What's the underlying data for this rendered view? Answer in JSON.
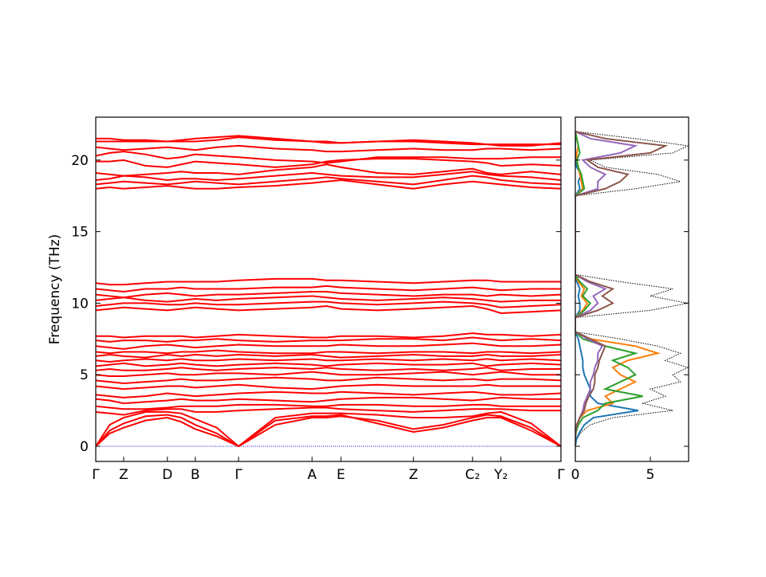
{
  "chart_data": [
    {
      "type": "line",
      "ylabel": "Frequency (THz)",
      "color": "#ff0000",
      "x": [
        0,
        0.3,
        0.6,
        1.07,
        1.54,
        1.84,
        2.14,
        2.6,
        3.07,
        3.86,
        4.65,
        4.96,
        5.27,
        6.05,
        6.83,
        7.47,
        8.1,
        8.41,
        8.71,
        9.36,
        10
      ],
      "bands": [
        [
          0,
          0.9,
          1.3,
          1.8,
          2.0,
          1.7,
          1.2,
          0.7,
          0,
          1.5,
          2.0,
          2.0,
          2.1,
          1.8,
          1.2,
          1.5,
          2.0,
          2.2,
          2.1,
          1.3,
          0
        ],
        [
          0,
          1.1,
          1.6,
          2.1,
          2.2,
          2.0,
          1.5,
          0.9,
          0,
          1.8,
          2.1,
          2.1,
          2.2,
          1.6,
          1.0,
          1.3,
          1.8,
          2.0,
          2.0,
          1.1,
          0
        ],
        [
          0,
          1.5,
          2.0,
          2.4,
          2.4,
          2.3,
          1.9,
          1.3,
          0,
          2.0,
          2.3,
          2.3,
          2.3,
          2.2,
          2.0,
          2.0,
          2.1,
          2.3,
          2.4,
          1.6,
          0
        ],
        [
          2.4,
          2.3,
          2.2,
          2.5,
          2.6,
          2.6,
          2.4,
          2.4,
          2.5,
          2.6,
          2.7,
          2.7,
          2.6,
          2.5,
          2.4,
          2.5,
          2.6,
          2.6,
          2.6,
          2.5,
          2.5
        ],
        [
          2.8,
          2.7,
          2.6,
          2.6,
          2.7,
          2.8,
          2.8,
          2.8,
          2.9,
          2.9,
          2.8,
          2.8,
          2.9,
          2.9,
          2.8,
          2.8,
          2.9,
          2.9,
          2.8,
          2.8,
          2.8
        ],
        [
          3.3,
          3.2,
          3.0,
          3.1,
          3.2,
          3.3,
          3.2,
          3.2,
          3.3,
          3.2,
          3.1,
          3.2,
          3.3,
          3.4,
          3.4,
          3.3,
          3.2,
          3.3,
          3.4,
          3.3,
          3.3
        ],
        [
          3.6,
          3.5,
          3.4,
          3.5,
          3.7,
          3.6,
          3.5,
          3.6,
          3.7,
          3.8,
          3.7,
          3.7,
          3.8,
          3.7,
          3.6,
          3.7,
          3.8,
          3.7,
          3.6,
          3.6,
          3.7
        ],
        [
          4.2,
          4.1,
          4.0,
          4.1,
          4.2,
          4.2,
          4.1,
          4.2,
          4.3,
          4.1,
          4.0,
          4.1,
          4.2,
          4.3,
          4.2,
          4.2,
          4.2,
          4.3,
          4.2,
          4.2,
          4.2
        ],
        [
          4.6,
          4.5,
          4.4,
          4.5,
          4.6,
          4.7,
          4.6,
          4.6,
          4.7,
          4.8,
          4.7,
          4.6,
          4.6,
          4.8,
          4.7,
          4.6,
          4.7,
          4.6,
          4.7,
          4.7,
          4.6
        ],
        [
          5.0,
          4.9,
          4.9,
          5.0,
          5.1,
          5.0,
          5.0,
          5.1,
          5.1,
          5.0,
          5.2,
          5.1,
          5.0,
          5.0,
          5.1,
          5.2,
          5.0,
          5.1,
          5.2,
          5.0,
          5.0
        ],
        [
          5.3,
          5.4,
          5.3,
          5.3,
          5.4,
          5.5,
          5.4,
          5.3,
          5.4,
          5.5,
          5.4,
          5.5,
          5.4,
          5.3,
          5.4,
          5.3,
          5.4,
          5.5,
          5.3,
          5.4,
          5.4
        ],
        [
          5.6,
          5.7,
          5.8,
          5.6,
          5.7,
          5.8,
          5.7,
          5.6,
          5.7,
          5.8,
          5.7,
          5.6,
          5.7,
          5.8,
          5.7,
          5.7,
          5.8,
          5.6,
          5.7,
          5.8,
          5.7
        ],
        [
          6.0,
          5.9,
          6.0,
          6.1,
          6.0,
          6.1,
          6.0,
          6.0,
          6.1,
          6.0,
          6.1,
          6.0,
          6.0,
          6.1,
          6.0,
          6.1,
          6.0,
          6.1,
          6.0,
          6.1,
          6.0
        ],
        [
          6.3,
          6.4,
          6.3,
          6.2,
          6.4,
          6.3,
          6.4,
          6.3,
          6.4,
          6.3,
          6.4,
          6.3,
          6.2,
          6.3,
          6.4,
          6.3,
          6.3,
          6.4,
          6.3,
          6.3,
          6.4
        ],
        [
          6.6,
          6.5,
          6.6,
          6.6,
          6.5,
          6.6,
          6.6,
          6.7,
          6.6,
          6.5,
          6.5,
          6.6,
          6.6,
          6.5,
          6.6,
          6.6,
          6.5,
          6.6,
          6.6,
          6.5,
          6.6
        ],
        [
          7.0,
          6.9,
          6.8,
          7.0,
          7.1,
          7.0,
          6.9,
          7.0,
          7.1,
          7.0,
          7.0,
          7.0,
          7.1,
          7.0,
          7.0,
          7.1,
          7.2,
          7.1,
          7.0,
          7.0,
          7.1
        ],
        [
          7.4,
          7.3,
          7.4,
          7.4,
          7.3,
          7.4,
          7.4,
          7.5,
          7.4,
          7.3,
          7.4,
          7.4,
          7.4,
          7.5,
          7.5,
          7.4,
          7.6,
          7.5,
          7.4,
          7.5,
          7.4
        ],
        [
          7.7,
          7.7,
          7.6,
          7.7,
          7.7,
          7.7,
          7.6,
          7.7,
          7.8,
          7.7,
          7.6,
          7.6,
          7.7,
          7.7,
          7.6,
          7.7,
          7.9,
          7.8,
          7.8,
          7.7,
          7.8
        ],
        [
          9.5,
          9.6,
          9.7,
          9.6,
          9.5,
          9.6,
          9.7,
          9.6,
          9.5,
          9.6,
          9.7,
          9.8,
          9.6,
          9.5,
          9.6,
          9.7,
          9.8,
          9.6,
          9.3,
          9.4,
          9.5
        ],
        [
          9.8,
          9.9,
          10.0,
          10.0,
          9.9,
          9.9,
          10.0,
          9.9,
          9.9,
          10.0,
          10.1,
          10.1,
          10.0,
          9.9,
          10.0,
          10.1,
          10.0,
          9.9,
          9.7,
          9.8,
          9.9
        ],
        [
          10.2,
          10.3,
          10.4,
          10.2,
          10.1,
          10.2,
          10.3,
          10.2,
          10.3,
          10.4,
          10.5,
          10.4,
          10.3,
          10.2,
          10.3,
          10.4,
          10.3,
          10.2,
          10.1,
          10.2,
          10.2
        ],
        [
          10.6,
          10.5,
          10.4,
          10.6,
          10.7,
          10.6,
          10.5,
          10.6,
          10.6,
          10.7,
          10.8,
          10.8,
          10.7,
          10.6,
          10.5,
          10.6,
          10.6,
          10.5,
          10.6,
          10.5,
          10.6
        ],
        [
          11.0,
          10.9,
          10.8,
          11.0,
          11.0,
          11.1,
          11.0,
          11.0,
          11.0,
          11.1,
          11.1,
          11.2,
          11.1,
          11.0,
          10.9,
          11.0,
          11.1,
          11.0,
          10.9,
          11.0,
          11.0
        ],
        [
          11.4,
          11.3,
          11.3,
          11.4,
          11.5,
          11.5,
          11.5,
          11.5,
          11.6,
          11.7,
          11.7,
          11.6,
          11.6,
          11.5,
          11.4,
          11.5,
          11.6,
          11.6,
          11.5,
          11.5,
          11.5
        ],
        [
          18.0,
          18.1,
          18.0,
          18.1,
          18.2,
          18.1,
          18.0,
          18.0,
          18.1,
          18.2,
          18.4,
          18.5,
          18.6,
          18.3,
          18.0,
          18.3,
          18.5,
          18.4,
          18.3,
          18.1,
          18.0
        ],
        [
          18.3,
          18.4,
          18.5,
          18.4,
          18.3,
          18.4,
          18.5,
          18.4,
          18.3,
          18.5,
          18.7,
          18.8,
          18.7,
          18.5,
          18.3,
          18.6,
          18.9,
          18.8,
          18.6,
          18.4,
          18.3
        ],
        [
          18.6,
          18.7,
          18.9,
          18.8,
          18.6,
          18.7,
          18.7,
          18.6,
          18.7,
          18.9,
          19.1,
          19.0,
          18.9,
          18.8,
          18.8,
          19.0,
          19.2,
          19.0,
          18.9,
          18.8,
          18.6
        ],
        [
          19.1,
          19.0,
          18.9,
          19.0,
          19.1,
          19.2,
          19.1,
          19.1,
          19.0,
          19.3,
          19.5,
          19.7,
          19.5,
          19.1,
          19.0,
          19.2,
          19.4,
          19.1,
          19.0,
          19.2,
          19.0
        ],
        [
          19.9,
          19.9,
          20.0,
          19.6,
          19.5,
          19.7,
          19.9,
          19.8,
          19.7,
          19.5,
          19.7,
          19.9,
          20.0,
          20.1,
          20.1,
          20.0,
          19.9,
          19.8,
          19.6,
          19.7,
          19.6
        ],
        [
          20.3,
          20.5,
          20.6,
          20.4,
          20.1,
          20.2,
          20.4,
          20.3,
          20.2,
          20.0,
          19.9,
          19.8,
          19.9,
          20.2,
          20.2,
          20.2,
          20.1,
          20.1,
          20.1,
          20.2,
          20.2
        ],
        [
          20.9,
          20.8,
          20.7,
          20.8,
          20.9,
          20.8,
          20.7,
          20.9,
          21.0,
          20.8,
          20.7,
          20.6,
          20.6,
          20.7,
          20.8,
          20.7,
          20.7,
          20.8,
          20.8,
          20.7,
          20.8
        ],
        [
          21.3,
          21.3,
          21.3,
          21.3,
          21.3,
          21.3,
          21.3,
          21.4,
          21.6,
          21.4,
          21.3,
          21.2,
          21.2,
          21.3,
          21.3,
          21.2,
          21.1,
          21.1,
          21.1,
          21.1,
          21.1
        ],
        [
          21.5,
          21.5,
          21.4,
          21.4,
          21.3,
          21.4,
          21.5,
          21.6,
          21.7,
          21.5,
          21.3,
          21.3,
          21.2,
          21.3,
          21.4,
          21.3,
          21.2,
          21.1,
          21.0,
          21.0,
          21.2
        ]
      ],
      "reference_line": {
        "value": 0,
        "color": "#0000ff"
      },
      "xlim": [
        0,
        10
      ],
      "ylim": [
        -1.06,
        23
      ],
      "xticks": [
        {
          "value": 0,
          "label": "Γ"
        },
        {
          "value": 0.6,
          "label": "Z"
        },
        {
          "value": 1.54,
          "label": "D"
        },
        {
          "value": 2.14,
          "label": "B"
        },
        {
          "value": 3.07,
          "label": "Γ"
        },
        {
          "value": 4.65,
          "label": "A"
        },
        {
          "value": 5.27,
          "label": "E"
        },
        {
          "value": 6.83,
          "label": "Z"
        },
        {
          "value": 8.1,
          "label": "C₂"
        },
        {
          "value": 8.71,
          "label": "Y₂"
        },
        {
          "value": 10,
          "label": "Γ"
        }
      ],
      "yticks": [
        0,
        5,
        10,
        15,
        20
      ]
    },
    {
      "type": "dos",
      "y": [
        0,
        0.5,
        1,
        1.5,
        2,
        2.5,
        3,
        3.5,
        4,
        4.5,
        5,
        5.5,
        6,
        6.5,
        7,
        7.5,
        8,
        8.5,
        9,
        9.5,
        10,
        10.5,
        11,
        11.5,
        12,
        12.5,
        13,
        13.5,
        14,
        14.5,
        15,
        15.5,
        16,
        16.5,
        17,
        17.5,
        18,
        18.5,
        19,
        19.5,
        20,
        20.5,
        21,
        21.5,
        22
      ],
      "series": [
        {
          "color": "#000000",
          "linestyle": "dotted",
          "values": [
            0,
            0.1,
            0.4,
            1.0,
            2.5,
            6.5,
            4.5,
            6,
            5,
            7,
            6.5,
            7.5,
            6,
            7,
            5.5,
            3,
            0,
            0,
            0,
            5,
            7.5,
            5,
            6.5,
            3,
            0,
            0,
            0,
            0,
            0,
            0,
            0,
            0,
            0,
            0,
            0,
            0,
            4,
            7,
            5.5,
            2,
            1,
            6.5,
            7.5,
            4,
            0
          ]
        },
        {
          "color": "#1f77b4",
          "linestyle": "solid",
          "values": [
            0,
            0.08,
            0.3,
            0.6,
            1.2,
            4.2,
            1.5,
            1,
            1,
            0.8,
            0.6,
            0.5,
            0.5,
            0.4,
            0.3,
            0.2,
            0,
            0,
            0,
            0.3,
            0.3,
            0.2,
            0.3,
            0.1,
            0,
            0,
            0,
            0,
            0,
            0,
            0,
            0,
            0,
            0,
            0,
            0,
            0.3,
            0.2,
            0.4,
            0.1,
            0,
            0,
            0,
            0,
            0
          ]
        },
        {
          "color": "#ff7f0e",
          "linestyle": "solid",
          "values": [
            0,
            0,
            0.02,
            0.1,
            0.3,
            0.8,
            2.5,
            2,
            3,
            4,
            3,
            2.5,
            3.5,
            5.5,
            4,
            1,
            0,
            0,
            0,
            0.5,
            0.8,
            0.4,
            0.6,
            0.2,
            0,
            0,
            0,
            0,
            0,
            0,
            0,
            0,
            0,
            0,
            0,
            0,
            0.5,
            0.4,
            0.3,
            0.2,
            0.1,
            0.1,
            0.2,
            0.1,
            0
          ]
        },
        {
          "color": "#2ca02c",
          "linestyle": "solid",
          "values": [
            0,
            0,
            0.05,
            0.2,
            0.5,
            1.5,
            2,
            4.5,
            2,
            3,
            4,
            3.5,
            2.5,
            4,
            2,
            0.5,
            0,
            0,
            0,
            0.6,
            1,
            0.5,
            0.8,
            0.3,
            0,
            0,
            0,
            0,
            0,
            0,
            0,
            0,
            0,
            0,
            0,
            0,
            0.6,
            0.5,
            0.4,
            0.2,
            0.1,
            0.3,
            0.2,
            0.1,
            0
          ]
        },
        {
          "color": "#9467bd",
          "linestyle": "solid",
          "values": [
            0,
            0,
            0.02,
            0.1,
            0.3,
            0.5,
            0.6,
            0.8,
            1,
            1,
            1.2,
            1.3,
            1.5,
            1.5,
            1.8,
            0.8,
            0,
            0,
            0,
            1,
            1.5,
            1.2,
            2,
            0.8,
            0,
            0,
            0,
            0,
            0,
            0,
            0,
            0,
            0,
            0,
            0,
            0,
            1.5,
            1.5,
            2,
            1,
            0.5,
            3,
            4,
            1,
            0
          ]
        },
        {
          "color": "#8c564b",
          "linestyle": "solid",
          "values": [
            0,
            0,
            0.02,
            0.1,
            0.3,
            0.6,
            0.7,
            0.9,
            1.2,
            1.3,
            1.3,
            1.5,
            1.6,
            1.8,
            2,
            1,
            0,
            0,
            0,
            1.5,
            2.5,
            1.8,
            2.5,
            1,
            0,
            0,
            0,
            0,
            0,
            0,
            0,
            0,
            0,
            0,
            0,
            0,
            2,
            3,
            3.5,
            1.5,
            0.8,
            5,
            6,
            2,
            0
          ]
        }
      ],
      "xlim": [
        0,
        7.55
      ],
      "ylim": [
        -1.06,
        23
      ],
      "xticks": [
        0,
        5
      ]
    }
  ]
}
